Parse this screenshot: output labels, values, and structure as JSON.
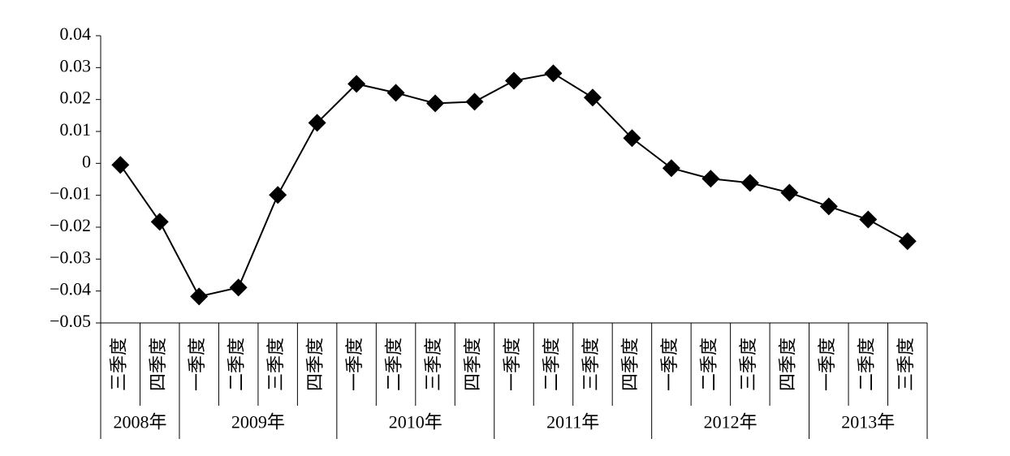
{
  "chart_data": {
    "type": "line",
    "categories": [
      "三季度",
      "四季度",
      "一季度",
      "二季度",
      "三季度",
      "四季度",
      "一季度",
      "二季度",
      "三季度",
      "四季度",
      "一季度",
      "二季度",
      "三季度",
      "四季度",
      "一季度",
      "二季度",
      "三季度",
      "四季度",
      "一季度",
      "二季度",
      "三季度"
    ],
    "groups": [
      {
        "label": "2008年",
        "span": 2
      },
      {
        "label": "2009年",
        "span": 4
      },
      {
        "label": "2010年",
        "span": 4
      },
      {
        "label": "2011年",
        "span": 4
      },
      {
        "label": "2012年",
        "span": 4
      },
      {
        "label": "2013年",
        "span": 3
      }
    ],
    "series": [
      {
        "color": "#000000",
        "marker": "diamond",
        "values": [
          -0.0005,
          -0.0183,
          -0.0417,
          -0.0389,
          -0.0099,
          0.0127,
          0.0249,
          0.0221,
          0.0188,
          0.0193,
          0.0259,
          0.0282,
          0.0206,
          0.0079,
          -0.0015,
          -0.0048,
          -0.0061,
          -0.0092,
          -0.0135,
          -0.0176,
          -0.0244
        ]
      }
    ],
    "ylim": [
      -0.05,
      0.04
    ],
    "yticks": [
      {
        "value": -0.05,
        "label": "−0.05"
      },
      {
        "value": -0.04,
        "label": "−0.04"
      },
      {
        "value": -0.03,
        "label": "−0.03"
      },
      {
        "value": -0.02,
        "label": "−0.02"
      },
      {
        "value": -0.01,
        "label": "−0.01"
      },
      0,
      0.01,
      0.02,
      0.03,
      0.04
    ],
    "grid": false
  }
}
